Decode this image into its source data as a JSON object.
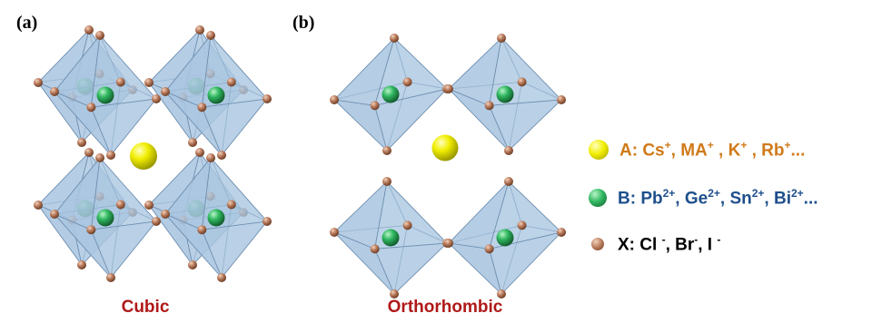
{
  "panels": [
    {
      "label": "(a)",
      "caption": "Cubic"
    },
    {
      "label": "(b)",
      "caption": "Orthorhombic"
    }
  ],
  "legend": [
    {
      "name": "legend-a",
      "color": "#d07a1a",
      "dot_color": "#f1ee00",
      "segments": [
        {
          "text": "A: Cs"
        },
        {
          "text": "+",
          "sup": true
        },
        {
          "text": ", MA"
        },
        {
          "text": "+",
          "sup": true
        },
        {
          "text": " , K"
        },
        {
          "text": "+",
          "sup": true
        },
        {
          "text": " , Rb"
        },
        {
          "text": "+",
          "sup": true
        },
        {
          "text": "..."
        }
      ]
    },
    {
      "name": "legend-b",
      "color": "#1e4f8c",
      "dot_color": "#2fb760",
      "segments": [
        {
          "text": "B: Pb"
        },
        {
          "text": "2+",
          "sup": true
        },
        {
          "text": ", Ge"
        },
        {
          "text": "2+",
          "sup": true
        },
        {
          "text": ", Sn"
        },
        {
          "text": "2+",
          "sup": true
        },
        {
          "text": ", Bi"
        },
        {
          "text": "2+",
          "sup": true
        },
        {
          "text": "..."
        }
      ]
    },
    {
      "name": "legend-x",
      "color": "#000000",
      "dot_color": "#b8795a",
      "segments": [
        {
          "text": "X: Cl "
        },
        {
          "text": "-",
          "sup": true
        },
        {
          "text": ", Br"
        },
        {
          "text": "-",
          "sup": true
        },
        {
          "text": ", I "
        },
        {
          "text": "-",
          "sup": true
        }
      ]
    }
  ],
  "colors": {
    "octahedron_face": "#a9c6e0",
    "octahedron_edge": "#6f8fb0",
    "a_site": "#f1ee00",
    "b_site": "#2fb760",
    "x_site": "#b8795a"
  }
}
